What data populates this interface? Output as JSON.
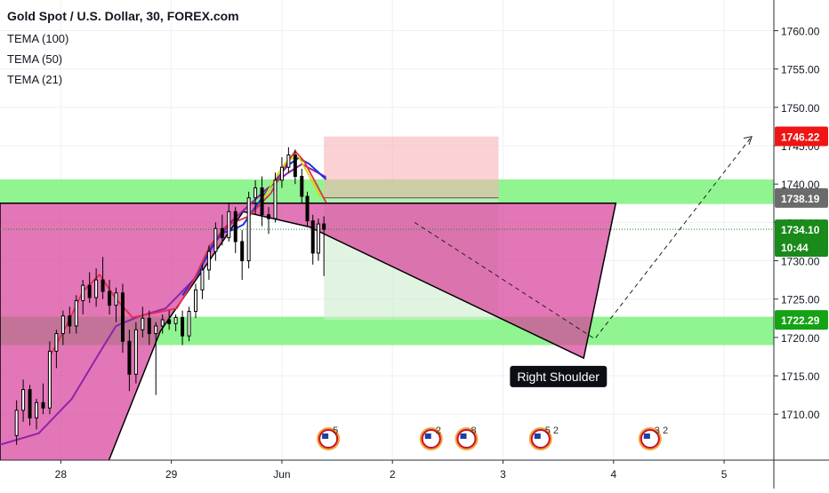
{
  "header": {
    "title": "Gold Spot / U.S. Dollar, 30, FOREX.com",
    "indicators": [
      "TEMA (100)",
      "TEMA (50)",
      "TEMA (21)"
    ]
  },
  "colors": {
    "bg": "#ffffff",
    "grid": "#eef0f3",
    "axis_text": "#131722",
    "candle": "#000000",
    "green_zone": "#7cf27c",
    "neckline_fill": "#d8419b",
    "loss_box": "#f7b3b7",
    "profit_box": "#cdeccd",
    "tema_100": "#8e24aa",
    "tema_50": "#1e33d9",
    "tema_21": "#e52d47",
    "tema_21_alt": "#d9d900",
    "last_price": "#1a8a1a",
    "target_badge": "#f01414",
    "level_badge": "#6b6b6b",
    "zone_badge": "#15a215"
  },
  "chart_data": {
    "type": "candlestick",
    "title": "Gold Spot / U.S. Dollar, 30, FOREX.com",
    "x_axis": {
      "ticks": [
        {
          "label": "28",
          "t": 0.5
        },
        {
          "label": "29",
          "t": 1.5
        },
        {
          "label": "Jun",
          "t": 2.5
        },
        {
          "label": "2",
          "t": 3.5
        },
        {
          "label": "3",
          "t": 4.5
        },
        {
          "label": "4",
          "t": 5.5
        },
        {
          "label": "5",
          "t": 6.5
        }
      ],
      "range": [
        -0.05,
        6.95
      ]
    },
    "y_axis": {
      "ticks": [
        "1710.00",
        "1715.00",
        "1720.00",
        "1725.00",
        "1730.00",
        "1735.00",
        "1740.00",
        "1745.00",
        "1750.00",
        "1755.00",
        "1760.00"
      ],
      "ylim": [
        1704,
        1764
      ]
    },
    "price_labels": [
      {
        "text": "1746.22",
        "value": 1746.22,
        "style": "target"
      },
      {
        "text": "1738.19",
        "value": 1738.19,
        "style": "level"
      },
      {
        "text": "1734.10",
        "value": 1734.1,
        "style": "last"
      },
      {
        "text": "10:44",
        "value": 1731.8,
        "style": "timer"
      },
      {
        "text": "1722.29",
        "value": 1722.29,
        "style": "zone"
      }
    ],
    "zones": [
      {
        "name": "resistance",
        "from": 1737.4,
        "to": 1740.6
      },
      {
        "name": "support",
        "from": 1719.0,
        "to": 1722.7
      }
    ],
    "position_box": {
      "entry": 1738.2,
      "stop": 1746.2,
      "target": 1722.3,
      "t_start": 2.88,
      "t_end": 4.46
    },
    "neckline_pattern": [
      {
        "t": -0.05,
        "p": 1737.5
      },
      {
        "t": 5.52,
        "p": 1737.5
      },
      {
        "t": 5.23,
        "p": 1717.3
      },
      {
        "t": 2.75,
        "p": 1734.4
      },
      {
        "t": 2.15,
        "p": 1736.4
      },
      {
        "t": 1.4,
        "p": 1720.8
      },
      {
        "t": 0.88,
        "p": 1702.0
      },
      {
        "t": -0.05,
        "p": 1702.0
      }
    ],
    "projection_path": [
      {
        "t": 3.7,
        "p": 1735.0
      },
      {
        "t": 5.33,
        "p": 1719.8
      },
      {
        "t": 6.75,
        "p": 1746.2
      }
    ],
    "annotations": [
      {
        "text": "Right Shoulder",
        "t": 5.0,
        "p": 1714.9
      }
    ],
    "events": [
      {
        "t": 2.92,
        "label": "5"
      },
      {
        "t": 3.85,
        "label": "2"
      },
      {
        "t": 4.17,
        "label": "8"
      },
      {
        "t": 4.84,
        "label": "5 2"
      },
      {
        "t": 5.83,
        "label": "3 2"
      }
    ],
    "tema_100": [
      [
        -0.05,
        1706.0
      ],
      [
        0.3,
        1707.5
      ],
      [
        0.6,
        1712
      ],
      [
        0.85,
        1718
      ],
      [
        1.0,
        1721.5
      ],
      [
        1.2,
        1722.7
      ],
      [
        1.45,
        1723.8
      ],
      [
        1.7,
        1727.5
      ],
      [
        1.9,
        1732.5
      ],
      [
        2.05,
        1735.2
      ],
      [
        2.2,
        1737.2
      ],
      [
        2.35,
        1739.2
      ],
      [
        2.55,
        1741.4
      ],
      [
        2.68,
        1742.6
      ],
      [
        2.9,
        1740.9
      ]
    ],
    "tema_50": [
      [
        1.6,
        1725.5
      ],
      [
        1.75,
        1728.5
      ],
      [
        1.85,
        1731.5
      ],
      [
        1.95,
        1733.6
      ],
      [
        2.05,
        1734.0
      ],
      [
        2.15,
        1734.7
      ],
      [
        2.25,
        1736.8
      ],
      [
        2.35,
        1738.8
      ],
      [
        2.45,
        1740.6
      ],
      [
        2.55,
        1742.4
      ],
      [
        2.65,
        1743.4
      ],
      [
        2.75,
        1742.6
      ],
      [
        2.9,
        1740.6
      ]
    ],
    "tema_21": [
      [
        0.4,
        1717.5
      ],
      [
        0.55,
        1721.5
      ],
      [
        0.7,
        1726.0
      ],
      [
        0.85,
        1728.2
      ],
      [
        1.0,
        1725.0
      ],
      [
        1.15,
        1722.6
      ],
      [
        1.35,
        1723.2
      ],
      [
        1.55,
        1723.8
      ],
      [
        1.7,
        1727.4
      ],
      [
        1.85,
        1732.0
      ],
      [
        2.0,
        1734.6
      ],
      [
        2.2,
        1735.8
      ],
      [
        2.4,
        1738.8
      ],
      [
        2.55,
        1742.8
      ],
      [
        2.62,
        1744.3
      ],
      [
        2.7,
        1743.0
      ],
      [
        2.8,
        1740.3
      ],
      [
        2.9,
        1737.6
      ]
    ],
    "tema_21_alt": [
      [
        2.3,
        1737.3
      ],
      [
        2.45,
        1741.0
      ],
      [
        2.55,
        1743.1
      ],
      [
        2.65,
        1743.6
      ],
      [
        2.75,
        1741.0
      ],
      [
        2.85,
        1738.3
      ]
    ],
    "candles": [
      [
        0.1,
        1707.2,
        1711.8,
        1706.0,
        1710.5
      ],
      [
        0.16,
        1710.5,
        1714.5,
        1709.0,
        1713.2
      ],
      [
        0.22,
        1713.2,
        1713.8,
        1708.5,
        1709.5
      ],
      [
        0.28,
        1709.5,
        1712.0,
        1708.0,
        1711.5
      ],
      [
        0.34,
        1711.5,
        1714.0,
        1710.0,
        1710.8
      ],
      [
        0.4,
        1710.8,
        1719.5,
        1710.0,
        1718.2
      ],
      [
        0.46,
        1718.2,
        1721.0,
        1716.0,
        1720.5
      ],
      [
        0.52,
        1720.5,
        1723.5,
        1719.0,
        1722.8
      ],
      [
        0.58,
        1722.8,
        1724.0,
        1720.5,
        1721.5
      ],
      [
        0.64,
        1721.5,
        1725.5,
        1720.5,
        1724.8
      ],
      [
        0.7,
        1724.8,
        1727.5,
        1723.0,
        1726.8
      ],
      [
        0.76,
        1726.8,
        1728.5,
        1724.5,
        1725.2
      ],
      [
        0.82,
        1725.2,
        1729.0,
        1724.0,
        1727.5
      ],
      [
        0.88,
        1727.5,
        1730.5,
        1725.0,
        1726.0
      ],
      [
        0.94,
        1726.0,
        1727.5,
        1723.0,
        1724.2
      ],
      [
        1.0,
        1724.2,
        1726.5,
        1722.0,
        1725.8
      ],
      [
        1.06,
        1725.8,
        1727.0,
        1718.0,
        1719.5
      ],
      [
        1.12,
        1719.5,
        1721.0,
        1713.0,
        1715.2
      ],
      [
        1.18,
        1715.2,
        1722.0,
        1714.0,
        1721.0
      ],
      [
        1.24,
        1721.0,
        1724.0,
        1720.0,
        1722.5
      ],
      [
        1.3,
        1722.5,
        1723.5,
        1719.0,
        1720.5
      ],
      [
        1.36,
        1720.5,
        1722.0,
        1712.5,
        1721.5
      ],
      [
        1.42,
        1721.5,
        1723.0,
        1720.5,
        1722.3
      ],
      [
        1.48,
        1722.3,
        1723.5,
        1721.0,
        1721.8
      ],
      [
        1.54,
        1721.8,
        1723.0,
        1720.8,
        1722.6
      ],
      [
        1.6,
        1722.6,
        1723.5,
        1719.0,
        1720.2
      ],
      [
        1.66,
        1720.2,
        1724.0,
        1719.5,
        1723.4
      ],
      [
        1.72,
        1723.4,
        1727.0,
        1722.5,
        1726.2
      ],
      [
        1.78,
        1726.2,
        1729.5,
        1725.0,
        1728.8
      ],
      [
        1.84,
        1728.8,
        1732.0,
        1727.5,
        1731.2
      ],
      [
        1.9,
        1731.2,
        1735.0,
        1730.0,
        1734.2
      ],
      [
        1.96,
        1734.2,
        1736.0,
        1732.0,
        1733.0
      ],
      [
        2.02,
        1733.0,
        1737.5,
        1732.5,
        1736.4
      ],
      [
        2.08,
        1736.4,
        1737.0,
        1731.0,
        1732.5
      ],
      [
        2.14,
        1732.5,
        1734.0,
        1727.5,
        1730.0
      ],
      [
        2.2,
        1730.0,
        1739.0,
        1729.0,
        1738.2
      ],
      [
        2.26,
        1738.2,
        1740.5,
        1736.0,
        1739.5
      ],
      [
        2.32,
        1739.5,
        1741.0,
        1734.5,
        1736.0
      ],
      [
        2.38,
        1736.0,
        1737.0,
        1733.5,
        1735.5
      ],
      [
        2.44,
        1735.5,
        1741.5,
        1735.0,
        1740.5
      ],
      [
        2.5,
        1740.5,
        1743.5,
        1739.5,
        1742.2
      ],
      [
        2.56,
        1742.2,
        1744.8,
        1741.5,
        1743.8
      ],
      [
        2.62,
        1743.8,
        1744.5,
        1740.0,
        1741.0
      ],
      [
        2.68,
        1741.0,
        1742.0,
        1737.5,
        1738.4
      ],
      [
        2.73,
        1738.4,
        1739.0,
        1734.5,
        1735.2
      ],
      [
        2.78,
        1735.2,
        1736.0,
        1729.5,
        1731.0
      ],
      [
        2.83,
        1731.0,
        1735.5,
        1730.0,
        1734.8
      ],
      [
        2.88,
        1734.8,
        1735.8,
        1728.0,
        1734.1
      ]
    ]
  }
}
